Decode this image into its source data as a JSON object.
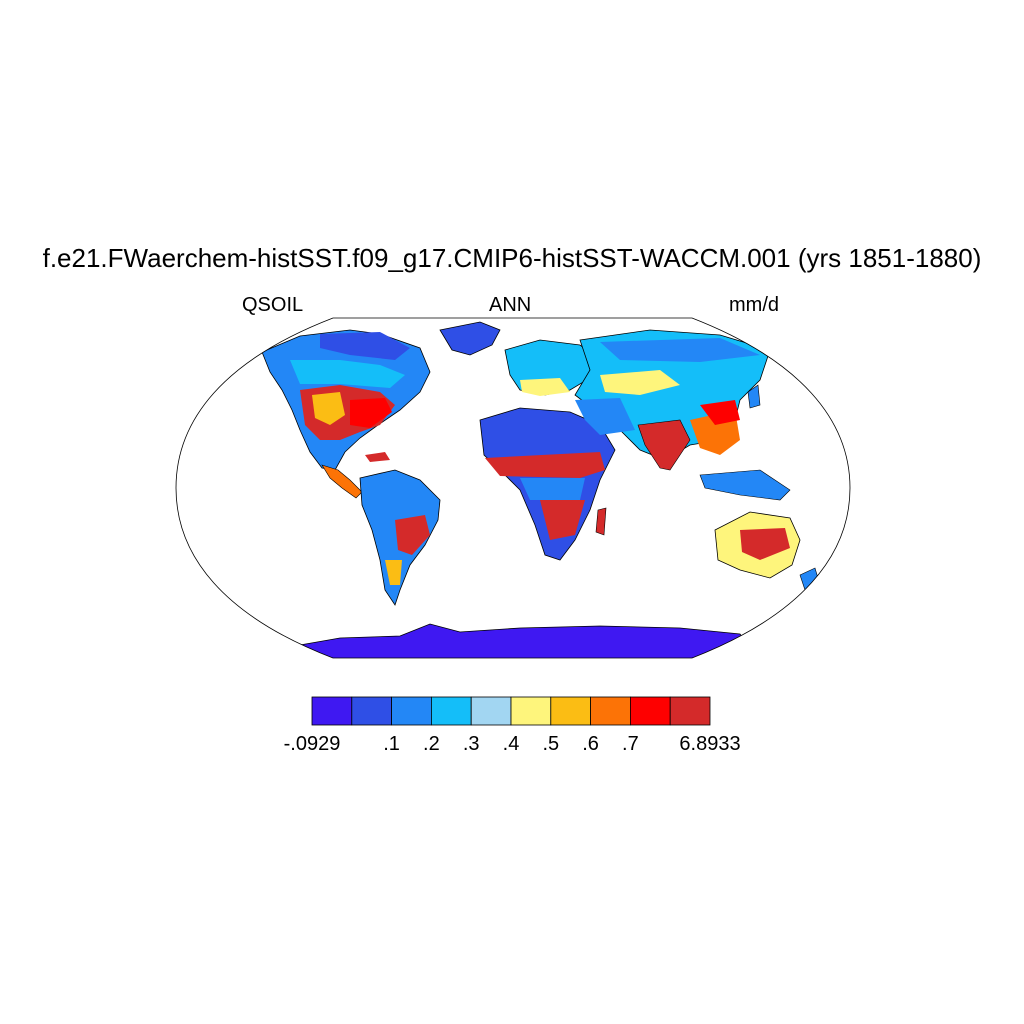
{
  "title": "f.e21.FWaerchem-histSST.f09_g17.CMIP6-histSST-WACCM.001 (yrs 1851-1880)",
  "subtitle_left": "QSOIL",
  "subtitle_center": "ANN",
  "subtitle_right": "mm/d",
  "colorbar": {
    "colors": [
      "#3f18f2",
      "#2f4fe6",
      "#2387f6",
      "#14bef9",
      "#a2d6f2",
      "#fef57c",
      "#fbbd14",
      "#fc7306",
      "#fe0000",
      "#d42a2a"
    ],
    "labels": [
      "-.0929",
      ".1",
      ".2",
      ".3",
      ".4",
      ".5",
      ".6",
      ".7",
      "6.8933"
    ]
  },
  "colors": {
    "ocean": "#ffffff",
    "outline": "#000000",
    "antarctica": "#3f18f2",
    "greenland": "#2f4fe6"
  }
}
